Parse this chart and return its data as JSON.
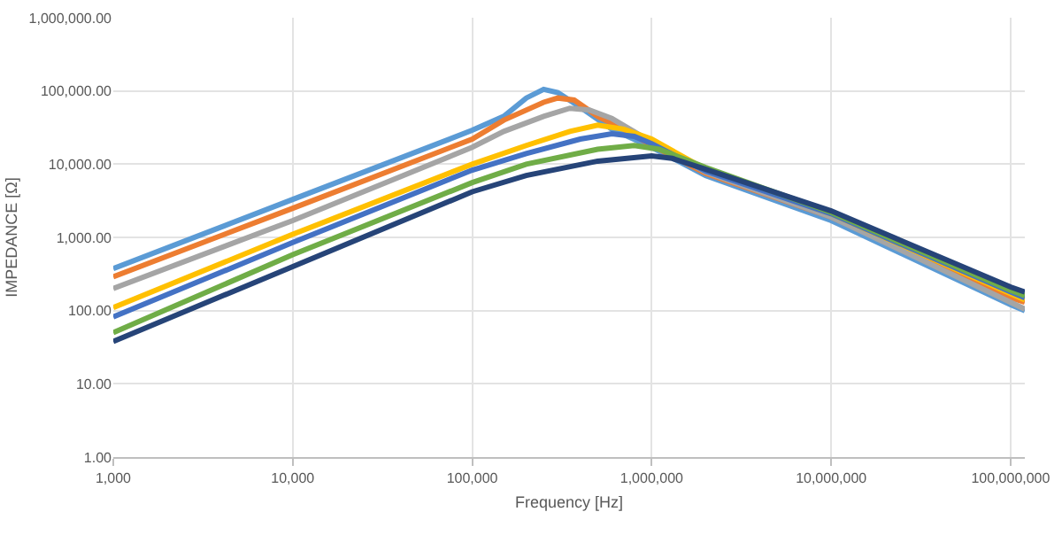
{
  "chart_data": {
    "type": "line",
    "xlabel": "Frequency [Hz]",
    "ylabel": "IMPEDANCE [Ω]",
    "log": "xy",
    "grid": true,
    "marker": "none",
    "line_style": "solid",
    "xlim": [
      1000,
      120000000
    ],
    "xticks": [
      {
        "value": 1000,
        "label": "1,000"
      },
      {
        "value": 10000,
        "label": "10,000"
      },
      {
        "value": 100000,
        "label": "100,000"
      },
      {
        "value": 1000000,
        "label": "1,000,000"
      },
      {
        "value": 10000000,
        "label": "10,000,000"
      },
      {
        "value": 100000000,
        "label": "100,000,000"
      }
    ],
    "ylim": [
      1,
      1000000
    ],
    "yticks": [
      {
        "value": 1,
        "label": "1.00"
      },
      {
        "value": 10,
        "label": "10.00"
      },
      {
        "value": 100,
        "label": "100.00"
      },
      {
        "value": 1000,
        "label": "1,000.00"
      },
      {
        "value": 10000,
        "label": "10,000.00"
      },
      {
        "value": 100000,
        "label": "100,000.00"
      },
      {
        "value": 1000000,
        "label": "1,000,000.00"
      }
    ],
    "series": [
      {
        "color": "#5b9bd5",
        "x": [
          1000,
          10000,
          100000,
          150000,
          200000,
          250000,
          300000,
          400000,
          600000,
          1000000,
          2000000,
          10000000,
          100000000,
          120000000
        ],
        "values": [
          375,
          3300,
          29000,
          45000,
          80000,
          105000,
          95000,
          60000,
          30000,
          17000,
          7000,
          1700,
          120,
          100
        ]
      },
      {
        "color": "#ed7d31",
        "x": [
          1000,
          10000,
          100000,
          150000,
          250000,
          300000,
          370000,
          500000,
          700000,
          1000000,
          2000000,
          10000000,
          100000000,
          120000000
        ],
        "values": [
          290,
          2500,
          22000,
          40000,
          70000,
          80000,
          75000,
          45000,
          30000,
          18000,
          7500,
          1900,
          150,
          130
        ]
      },
      {
        "color": "#a5a5a5",
        "x": [
          1000,
          10000,
          100000,
          150000,
          250000,
          350000,
          450000,
          600000,
          1000000,
          2000000,
          10000000,
          100000000,
          120000000
        ],
        "values": [
          200,
          1700,
          17000,
          28000,
          45000,
          58000,
          55000,
          42000,
          20000,
          7800,
          1900,
          130,
          105
        ]
      },
      {
        "color": "#ffc000",
        "x": [
          1000,
          10000,
          100000,
          200000,
          350000,
          500000,
          700000,
          1000000,
          2000000,
          10000000,
          100000000,
          120000000
        ],
        "values": [
          110,
          1100,
          10000,
          18000,
          28000,
          34000,
          30000,
          22000,
          8500,
          2100,
          170,
          140
        ]
      },
      {
        "color": "#4472c4",
        "x": [
          1000,
          10000,
          100000,
          200000,
          400000,
          600000,
          800000,
          1000000,
          2000000,
          10000000,
          100000000,
          120000000
        ],
        "values": [
          82,
          850,
          8300,
          14000,
          22000,
          26000,
          24000,
          19000,
          8000,
          2100,
          180,
          150
        ]
      },
      {
        "color": "#70ad47",
        "x": [
          1000,
          10000,
          100000,
          200000,
          500000,
          800000,
          1100000,
          2000000,
          10000000,
          100000000,
          120000000
        ],
        "values": [
          50,
          580,
          5600,
          10000,
          16000,
          18000,
          16000,
          9000,
          2200,
          190,
          160
        ]
      },
      {
        "color": "#264478",
        "x": [
          1000,
          10000,
          100000,
          200000,
          500000,
          1000000,
          1300000,
          2000000,
          10000000,
          100000000,
          120000000
        ],
        "values": [
          38,
          400,
          4200,
          7000,
          11000,
          13000,
          12000,
          8500,
          2300,
          210,
          180
        ]
      }
    ]
  }
}
